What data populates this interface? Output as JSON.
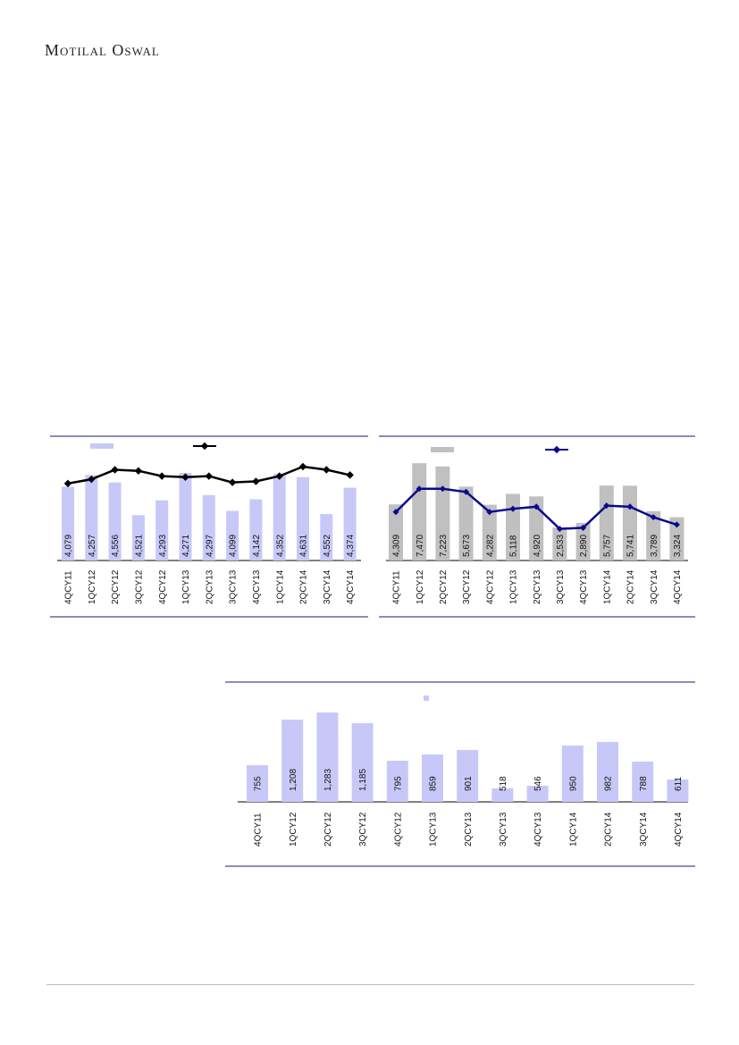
{
  "brand": {
    "name": "Motilal Oswal"
  },
  "colors": {
    "bar_lavender": "#c8c8f8",
    "bar_grey": "#c0c0c0",
    "line_black": "#000000",
    "line_navy": "#0a0a8c",
    "rule_navy": "#1a1a6e"
  },
  "chart_data": [
    {
      "type": "bar+line",
      "categories": [
        "4QCY11",
        "1QCY12",
        "2QCY12",
        "3QCY12",
        "4QCY12",
        "1QCY13",
        "2QCY13",
        "3QCY13",
        "4QCY13",
        "1QCY14",
        "2QCY14",
        "3QCY14",
        "4QCY14"
      ],
      "bar_values": [
        4079,
        4257,
        4556,
        4521,
        4293,
        4271,
        4297,
        4099,
        4142,
        4352,
        4631,
        4552,
        4374
      ],
      "bar_data_labels": [
        "4,079",
        "4,257",
        "4,556",
        "4,521",
        "4,293",
        "4,271",
        "4,297",
        "4,099",
        "4,142",
        "4,352",
        "4,631",
        "4,552",
        "4,374"
      ],
      "bar_display_heights": [
        0.7,
        0.81,
        0.74,
        0.43,
        0.57,
        0.83,
        0.62,
        0.47,
        0.58,
        0.82,
        0.79,
        0.44,
        0.69
      ],
      "line_display_levels": [
        0.73,
        0.77,
        0.86,
        0.85,
        0.8,
        0.79,
        0.8,
        0.74,
        0.75,
        0.8,
        0.89,
        0.86,
        0.81
      ],
      "legend": [
        "",
        ""
      ]
    },
    {
      "type": "bar+line",
      "categories": [
        "4QCY11",
        "1QCY12",
        "2QCY12",
        "3QCY12",
        "4QCY12",
        "1QCY13",
        "2QCY13",
        "3QCY13",
        "4QCY13",
        "1QCY14",
        "2QCY14",
        "3QCY14",
        "4QCY14"
      ],
      "bar_values": [
        4309,
        7470,
        7223,
        5673,
        4282,
        5118,
        4920,
        2533,
        2890,
        5757,
        5741,
        3789,
        3324
      ],
      "bar_data_labels": [
        "4,309",
        "7,470",
        "7,223",
        "5,673",
        "4,282",
        "5,118",
        "4,920",
        "2,533",
        "2,890",
        "5,757",
        "5,741",
        "3,789",
        "3,324"
      ],
      "line_display_levels": [
        0.46,
        0.68,
        0.68,
        0.65,
        0.46,
        0.49,
        0.51,
        0.3,
        0.31,
        0.52,
        0.51,
        0.41,
        0.34
      ],
      "legend": [
        "",
        ""
      ]
    },
    {
      "type": "bar",
      "categories": [
        "4QCY11",
        "1QCY12",
        "2QCY12",
        "3QCY12",
        "4QCY12",
        "1QCY13",
        "2QCY13",
        "3QCY13",
        "4QCY13",
        "1QCY14",
        "2QCY14",
        "3QCY14",
        "4QCY14"
      ],
      "values": [
        755,
        1208,
        1283,
        1185,
        795,
        859,
        901,
        518,
        546,
        950,
        982,
        788,
        611
      ],
      "data_labels": [
        "755",
        "1,208",
        "1,283",
        "1,185",
        "795",
        "859",
        "901",
        "518",
        "546",
        "950",
        "982",
        "788",
        "611"
      ],
      "bar_display_heights": [
        0.41,
        0.92,
        1.0,
        0.88,
        0.46,
        0.53,
        0.58,
        0.15,
        0.18,
        0.63,
        0.67,
        0.45,
        0.25
      ],
      "legend": [
        ""
      ]
    }
  ]
}
